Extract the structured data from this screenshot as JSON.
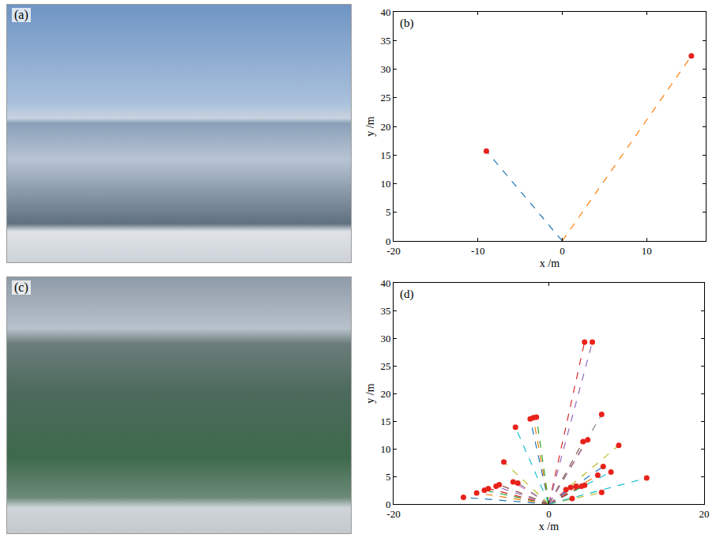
{
  "photos": [
    {
      "label": "(a)"
    },
    {
      "label": "(c)"
    }
  ],
  "chart_data": [
    {
      "type": "scatter",
      "label": "(b)",
      "x_label": "x /m",
      "y_label": "y /m",
      "xlim": [
        -20,
        17
      ],
      "xticks": [
        -20,
        -10,
        0,
        10
      ],
      "ylim": [
        0,
        40
      ],
      "yticks": [
        0,
        5,
        10,
        15,
        20,
        25,
        30,
        35,
        40
      ],
      "grid": false,
      "series": [
        {
          "type": "line",
          "line_style": "dashed",
          "color": "#1f77b4",
          "x": [
            0,
            -9
          ],
          "y": [
            0,
            15.7
          ]
        },
        {
          "type": "line",
          "line_style": "dashed",
          "color": "#ff7f0e",
          "x": [
            0,
            15.3
          ],
          "y": [
            0,
            32.3
          ]
        },
        {
          "type": "scatter",
          "marker": "circle",
          "color": "#e8221b",
          "x": [
            -9,
            15.3
          ],
          "y": [
            15.7,
            32.3
          ]
        }
      ]
    },
    {
      "type": "scatter",
      "label": "(d)",
      "x_label": "x /m",
      "y_label": "y /m",
      "xlim": [
        -20,
        20
      ],
      "xticks": [
        -20,
        0,
        20
      ],
      "ylim": [
        0,
        40
      ],
      "yticks": [
        0,
        5,
        10,
        15,
        20,
        25,
        30,
        35,
        40
      ],
      "grid": false,
      "series": [
        {
          "type": "line",
          "line_style": "dashed",
          "color": "#1f77b4",
          "x": [
            0,
            -11
          ],
          "y": [
            0,
            1.2
          ]
        },
        {
          "type": "line",
          "line_style": "dashed",
          "color": "#ff7f0e",
          "x": [
            0,
            -9.3
          ],
          "y": [
            0,
            2.0
          ]
        },
        {
          "type": "line",
          "line_style": "dashed",
          "color": "#2ca02c",
          "x": [
            0,
            -8.3
          ],
          "y": [
            0,
            2.5
          ]
        },
        {
          "type": "line",
          "line_style": "dashed",
          "color": "#d62728",
          "x": [
            0,
            -7.8
          ],
          "y": [
            0,
            2.8
          ]
        },
        {
          "type": "line",
          "line_style": "dashed",
          "color": "#9467bd",
          "x": [
            0,
            -6.8
          ],
          "y": [
            0,
            3.2
          ]
        },
        {
          "type": "line",
          "line_style": "dashed",
          "color": "#8c564b",
          "x": [
            0,
            -6.4
          ],
          "y": [
            0,
            3.5
          ]
        },
        {
          "type": "line",
          "line_style": "dashed",
          "color": "#e377c2",
          "x": [
            0,
            -4.6
          ],
          "y": [
            0,
            4.0
          ]
        },
        {
          "type": "line",
          "line_style": "dashed",
          "color": "#7f7f7f",
          "x": [
            0,
            -4.0
          ],
          "y": [
            0,
            3.8
          ]
        },
        {
          "type": "line",
          "line_style": "dashed",
          "color": "#bcbd22",
          "x": [
            0,
            -5.8
          ],
          "y": [
            0,
            7.6
          ]
        },
        {
          "type": "line",
          "line_style": "dashed",
          "color": "#17becf",
          "x": [
            0,
            -4.3
          ],
          "y": [
            0,
            13.9
          ]
        },
        {
          "type": "line",
          "line_style": "dashed",
          "color": "#1f77b4",
          "x": [
            0,
            -2.4
          ],
          "y": [
            0,
            15.4
          ]
        },
        {
          "type": "line",
          "line_style": "dashed",
          "color": "#ff7f0e",
          "x": [
            0,
            -2.0
          ],
          "y": [
            0,
            15.6
          ]
        },
        {
          "type": "line",
          "line_style": "dashed",
          "color": "#2ca02c",
          "x": [
            0,
            -1.6
          ],
          "y": [
            0,
            15.7
          ]
        },
        {
          "type": "line",
          "line_style": "dashed",
          "color": "#d62728",
          "x": [
            0,
            4.6
          ],
          "y": [
            0,
            29.3
          ]
        },
        {
          "type": "line",
          "line_style": "dashed",
          "color": "#9467bd",
          "x": [
            0,
            5.6
          ],
          "y": [
            0,
            29.3
          ]
        },
        {
          "type": "line",
          "line_style": "dashed",
          "color": "#8c564b",
          "x": [
            0,
            4.4
          ],
          "y": [
            0,
            11.3
          ]
        },
        {
          "type": "line",
          "line_style": "dashed",
          "color": "#e377c2",
          "x": [
            0,
            5.0
          ],
          "y": [
            0,
            11.6
          ]
        },
        {
          "type": "line",
          "line_style": "dashed",
          "color": "#7f7f7f",
          "x": [
            0,
            6.8
          ],
          "y": [
            0,
            16.2
          ]
        },
        {
          "type": "line",
          "line_style": "dashed",
          "color": "#bcbd22",
          "x": [
            0,
            9.0
          ],
          "y": [
            0,
            10.6
          ]
        },
        {
          "type": "line",
          "line_style": "dashed",
          "color": "#17becf",
          "x": [
            0,
            8.0
          ],
          "y": [
            0,
            5.8
          ]
        },
        {
          "type": "line",
          "line_style": "dashed",
          "color": "#1f77b4",
          "x": [
            0,
            7.0
          ],
          "y": [
            0,
            6.8
          ]
        },
        {
          "type": "line",
          "line_style": "dashed",
          "color": "#ff7f0e",
          "x": [
            0,
            6.3
          ],
          "y": [
            0,
            5.2
          ]
        },
        {
          "type": "line",
          "line_style": "dashed",
          "color": "#2ca02c",
          "x": [
            0,
            4.6
          ],
          "y": [
            0,
            3.4
          ]
        },
        {
          "type": "line",
          "line_style": "dashed",
          "color": "#d62728",
          "x": [
            0,
            4.2
          ],
          "y": [
            0,
            3.2
          ]
        },
        {
          "type": "line",
          "line_style": "dashed",
          "color": "#9467bd",
          "x": [
            0,
            3.5
          ],
          "y": [
            0,
            3.2
          ]
        },
        {
          "type": "line",
          "line_style": "dashed",
          "color": "#8c564b",
          "x": [
            0,
            2.8
          ],
          "y": [
            0,
            3.0
          ]
        },
        {
          "type": "line",
          "line_style": "dashed",
          "color": "#e377c2",
          "x": [
            0,
            2.2
          ],
          "y": [
            0,
            2.6
          ]
        },
        {
          "type": "line",
          "line_style": "dashed",
          "color": "#7f7f7f",
          "x": [
            0,
            3.0
          ],
          "y": [
            0,
            1.0
          ]
        },
        {
          "type": "line",
          "line_style": "dashed",
          "color": "#bcbd22",
          "x": [
            0,
            6.8
          ],
          "y": [
            0,
            2.1
          ]
        },
        {
          "type": "line",
          "line_style": "dashed",
          "color": "#17becf",
          "x": [
            0,
            12.6
          ],
          "y": [
            0,
            4.7
          ]
        },
        {
          "type": "scatter",
          "marker": "circle",
          "color": "#e8221b",
          "x": [
            -11,
            -9.3,
            -8.3,
            -7.8,
            -6.8,
            -6.4,
            -4.6,
            -4.0,
            -5.8,
            -4.3,
            -2.4,
            -2.0,
            -1.6,
            4.6,
            5.6,
            4.4,
            5.0,
            6.8,
            9.0,
            8.0,
            7.0,
            6.3,
            4.6,
            4.2,
            3.5,
            2.8,
            2.2,
            3.0,
            6.8,
            12.6
          ],
          "y": [
            1.2,
            2.0,
            2.5,
            2.8,
            3.2,
            3.5,
            4.0,
            3.8,
            7.6,
            13.9,
            15.4,
            15.6,
            15.7,
            29.3,
            29.3,
            11.3,
            11.6,
            16.2,
            10.6,
            5.8,
            6.8,
            5.2,
            3.4,
            3.2,
            3.2,
            3.0,
            2.6,
            1.0,
            2.1,
            4.7
          ]
        }
      ]
    }
  ]
}
